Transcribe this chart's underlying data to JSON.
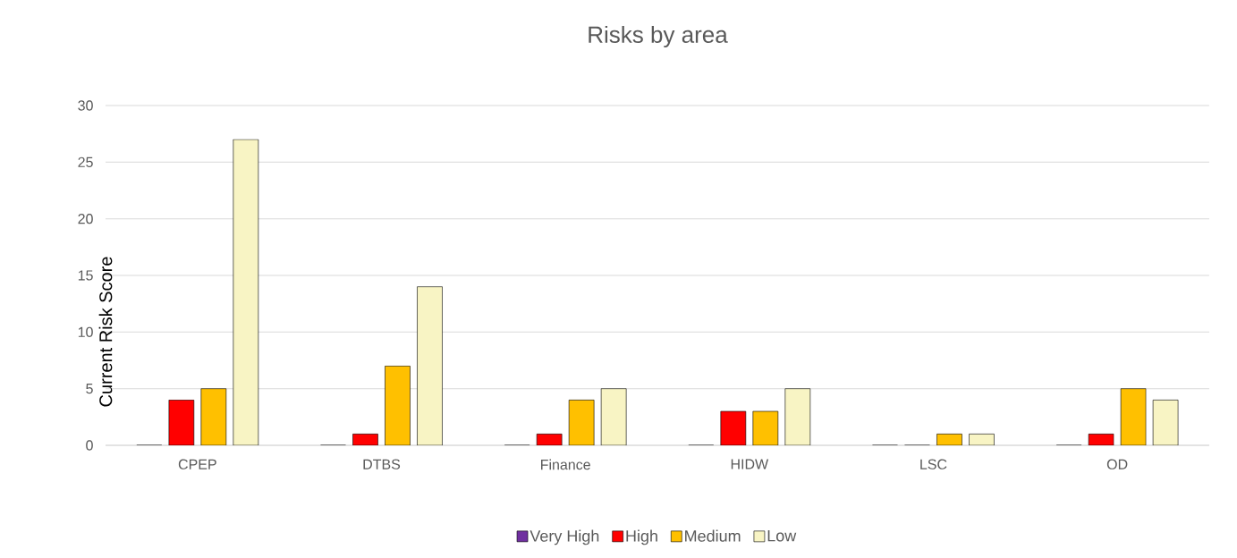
{
  "chart_data": {
    "type": "bar",
    "title": "Risks by area",
    "ylabel": "Current Risk Score",
    "categories": [
      "CPEP",
      "DTBS",
      "Finance",
      "HIDW",
      "LSC",
      "OD"
    ],
    "series": [
      {
        "name": "Very High",
        "color": "#7030a0",
        "values": [
          0,
          0,
          0,
          0,
          0,
          0
        ]
      },
      {
        "name": "High",
        "color": "#ff0000",
        "values": [
          4,
          1,
          1,
          3,
          0,
          1
        ]
      },
      {
        "name": "Medium",
        "color": "#ffc000",
        "values": [
          5,
          7,
          4,
          3,
          1,
          5
        ]
      },
      {
        "name": "Low",
        "color": "#f8f4c4",
        "values": [
          27,
          14,
          5,
          5,
          1,
          4
        ]
      }
    ],
    "ylim": [
      0,
      30
    ],
    "yticks": [
      0,
      5,
      10,
      15,
      20,
      25,
      30
    ],
    "grid": "y",
    "legend": "bottom"
  }
}
